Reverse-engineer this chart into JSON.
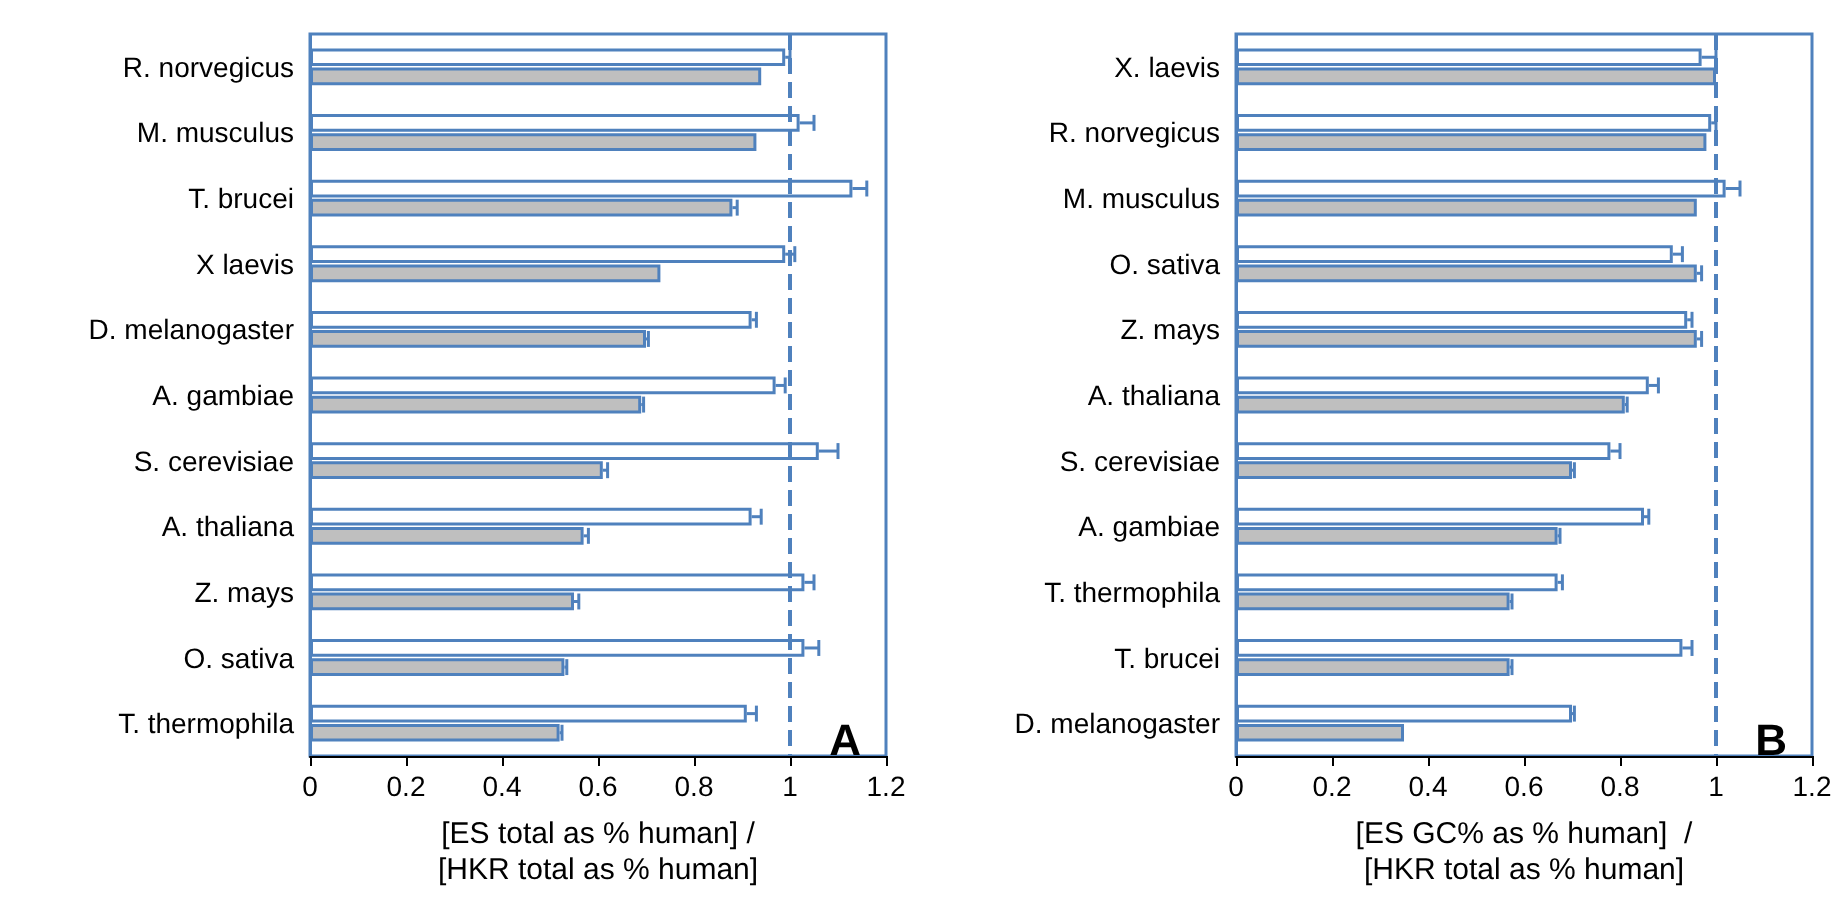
{
  "chart_data": [
    {
      "type": "bar",
      "orientation": "horizontal",
      "annotations": [
        "A"
      ],
      "xlabel": "[ES total as % human] /\n[HKR total as % human]",
      "categories": [
        "R. norvegicus",
        "M. musculus",
        "T. brucei",
        "X laevis",
        "D. melanogaster",
        "A. gambiae",
        "S. cerevisiae",
        "A. thaliana",
        "Z. mays",
        "O. sativa",
        "T. thermophila"
      ],
      "series": [
        {
          "color": "#ffffff",
          "values": [
            0.99,
            1.02,
            1.13,
            0.99,
            0.92,
            0.97,
            1.06,
            0.92,
            1.03,
            1.03,
            0.91
          ],
          "errors": [
            [
              0.99,
              1.0
            ],
            [
              1.02,
              1.05
            ],
            [
              1.13,
              1.16
            ],
            [
              0.99,
              1.01
            ],
            [
              0.92,
              0.93
            ],
            [
              0.97,
              0.99
            ],
            [
              1.06,
              1.1
            ],
            [
              0.92,
              0.94
            ],
            [
              1.03,
              1.05
            ],
            [
              1.03,
              1.06
            ],
            [
              0.91,
              0.93
            ]
          ]
        },
        {
          "color": "#bfbfbf",
          "values": [
            0.94,
            0.93,
            0.88,
            0.73,
            0.7,
            0.69,
            0.61,
            0.57,
            0.55,
            0.53,
            0.52
          ],
          "errors": [
            null,
            null,
            [
              0.88,
              0.89
            ],
            null,
            [
              0.7,
              0.705
            ],
            [
              0.69,
              0.695
            ],
            [
              0.61,
              0.62
            ],
            [
              0.57,
              0.58
            ],
            [
              0.55,
              0.56
            ],
            [
              0.53,
              0.535
            ],
            [
              0.52,
              0.525
            ]
          ]
        }
      ],
      "xlim": [
        0,
        1.2
      ],
      "xticks": [
        0,
        0.2,
        0.4,
        0.6,
        0.8,
        1,
        1.2
      ],
      "grid": false,
      "ref_lines": [
        {
          "axis": "x",
          "value": 1,
          "color": "#4f81bd",
          "line_style": "dashed"
        }
      ]
    },
    {
      "type": "bar",
      "orientation": "horizontal",
      "annotations": [
        "B"
      ],
      "xlabel": "[ES GC% as % human]  /\n[HKR total as % human]",
      "categories": [
        "X. laevis",
        "R. norvegicus",
        "M. musculus",
        "O. sativa",
        "Z. mays",
        "A. thaliana",
        "S. cerevisiae",
        "A. gambiae",
        "T. thermophila",
        "T. brucei",
        "D. melanogaster"
      ],
      "series": [
        {
          "color": "#ffffff",
          "values": [
            0.97,
            0.99,
            1.02,
            0.91,
            0.94,
            0.86,
            0.78,
            0.85,
            0.67,
            0.93,
            0.7
          ],
          "errors": [
            [
              0.97,
              1.0
            ],
            [
              0.99,
              1.0
            ],
            [
              1.02,
              1.05
            ],
            [
              0.91,
              0.93
            ],
            [
              0.94,
              0.95
            ],
            [
              0.86,
              0.88
            ],
            [
              0.78,
              0.8
            ],
            [
              0.85,
              0.86
            ],
            [
              0.67,
              0.68
            ],
            [
              0.93,
              0.95
            ],
            [
              0.7,
              0.705
            ]
          ]
        },
        {
          "color": "#bfbfbf",
          "values": [
            1.0,
            0.98,
            0.96,
            0.96,
            0.96,
            0.81,
            0.7,
            0.67,
            0.57,
            0.57,
            0.35
          ],
          "errors": [
            null,
            null,
            null,
            [
              0.96,
              0.97
            ],
            [
              0.96,
              0.97
            ],
            [
              0.81,
              0.815
            ],
            [
              0.7,
              0.705
            ],
            [
              0.67,
              0.675
            ],
            [
              0.57,
              0.575
            ],
            [
              0.57,
              0.575
            ],
            null
          ]
        }
      ],
      "xlim": [
        0,
        1.2
      ],
      "xticks": [
        0,
        0.2,
        0.4,
        0.6,
        0.8,
        1,
        1.2
      ],
      "grid": false,
      "ref_lines": [
        {
          "axis": "x",
          "value": 1,
          "color": "#4f81bd",
          "line_style": "dashed"
        }
      ]
    }
  ]
}
